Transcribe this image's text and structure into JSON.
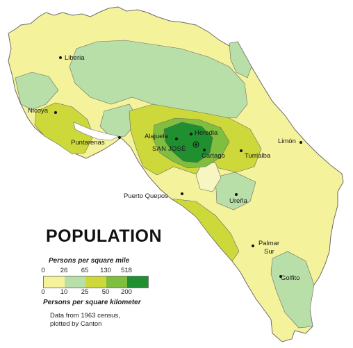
{
  "title": "POPULATION",
  "legend": {
    "mile_caption": "Persons per square mile",
    "km_caption": "Persons per square kilometer",
    "mile_ticks": [
      "0",
      "26",
      "65",
      "130",
      "518"
    ],
    "km_ticks": [
      "0",
      "10",
      "25",
      "50",
      "200"
    ],
    "classes": [
      {
        "color": "#f4f29a"
      },
      {
        "color": "#b9dfa9"
      },
      {
        "color": "#cdd93a"
      },
      {
        "color": "#7fbe3f"
      },
      {
        "color": "#1f8f2f"
      }
    ]
  },
  "note": {
    "line1": "Data from 1963 census,",
    "line2": "plotted by Canton"
  },
  "cities": {
    "liberia": "Liberia",
    "nicoya": "Nicoya",
    "puntarenas": "Puntarenas",
    "alajuela": "Alajuela",
    "heredia": "Heredia",
    "san_jose": "SAN JOSÉ",
    "cartago": "Cartago",
    "turrialba": "Turrialba",
    "limon": "Limón",
    "puerto_quepos": "Puerto Quepos",
    "urena": "Ureña",
    "palmar_sur_1": "Palmar",
    "palmar_sur_2": "Sur",
    "golfito": "Golfito"
  },
  "colors": {
    "lowest": "#f4f29a",
    "low": "#b9dfa9",
    "medium": "#cdd93a",
    "high": "#7fbe3f",
    "highest": "#1f8f2f",
    "border": "#6a6a6a"
  }
}
